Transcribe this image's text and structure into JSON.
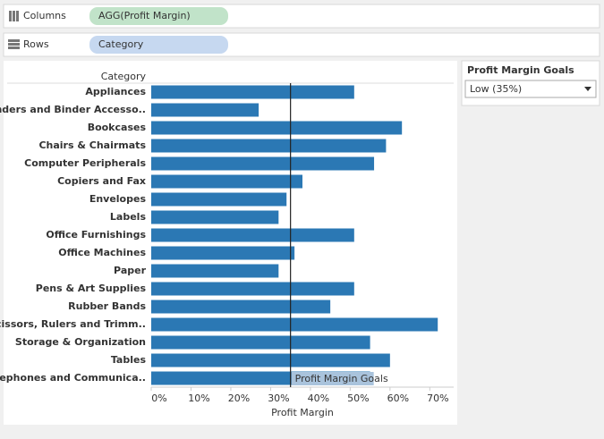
{
  "shelves": {
    "columns": {
      "label": "Columns",
      "pill": "AGG(Profit Margin)"
    },
    "rows": {
      "label": "Rows",
      "pill": "Category"
    }
  },
  "parameter": {
    "title": "Profit Margin Goals",
    "value": "Low (35%)"
  },
  "chart_data": {
    "type": "bar",
    "orientation": "horizontal",
    "y_header": "Category",
    "x_label": "Profit Margin",
    "categories": [
      "Appliances",
      "Binders and Binder Accesso..",
      "Bookcases",
      "Chairs & Chairmats",
      "Computer Peripherals",
      "Copiers and Fax",
      "Envelopes",
      "Labels",
      "Office Furnishings",
      "Office Machines",
      "Paper",
      "Pens & Art Supplies",
      "Rubber Bands",
      "Scissors, Rulers and Trimm..",
      "Storage & Organization",
      "Tables",
      "Telephones and Communica.."
    ],
    "values": [
      51,
      27,
      63,
      59,
      56,
      38,
      34,
      32,
      51,
      36,
      32,
      51,
      45,
      72,
      55,
      60,
      55
    ],
    "color": "#2b78b4",
    "xlim": [
      0,
      76
    ],
    "xticks": [
      {
        "value": 0,
        "label": "0%"
      },
      {
        "value": 10,
        "label": "10%"
      },
      {
        "value": 20,
        "label": "20%"
      },
      {
        "value": 30,
        "label": "30%"
      },
      {
        "value": 40,
        "label": "40%"
      },
      {
        "value": 50,
        "label": "50%"
      },
      {
        "value": 60,
        "label": "60%"
      },
      {
        "value": 70,
        "label": "70%"
      }
    ],
    "reference_line": {
      "value": 35,
      "label": "Profit Margin Goals"
    }
  }
}
